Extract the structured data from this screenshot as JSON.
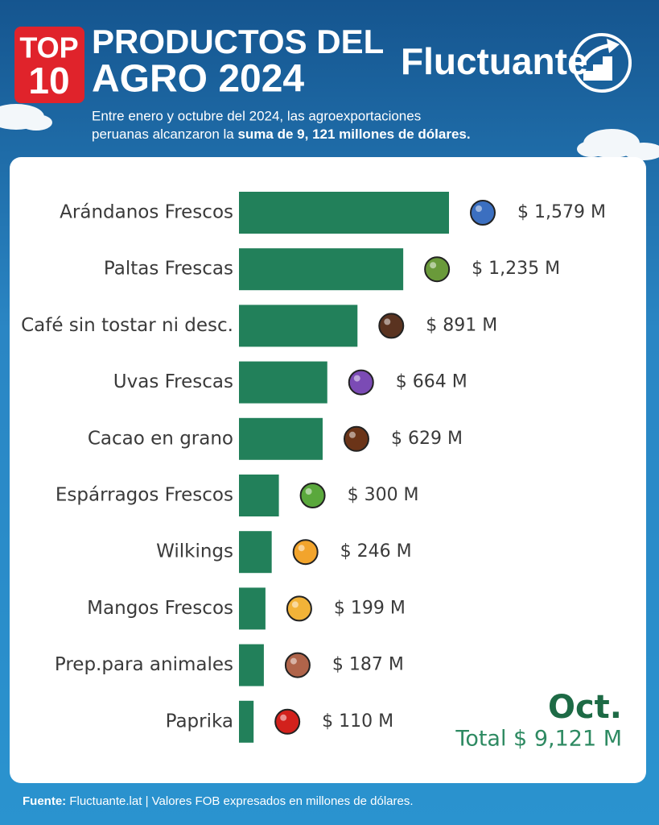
{
  "badge": {
    "top": "TOP",
    "number": "10"
  },
  "header": {
    "title_line1": "PRODUCTOS DEL",
    "title_line2": "AGRO 2024",
    "brand": "Fluctuante",
    "subtitle_line1": "Entre enero y octubre del 2024, las agroexportaciones",
    "subtitle_line2_plain": "peruanas alcanzaron la",
    "subtitle_line2_bold": "suma de 9, 121 millones de dólares."
  },
  "chart_data": {
    "type": "hbar",
    "color": "#22805a",
    "categories": [
      "Arándanos Frescos",
      "Paltas Frescas",
      "Café sin tostar ni desc.",
      "Uvas Frescas",
      "Cacao en grano",
      "Espárragos Frescos",
      "Wilkings",
      "Mangos Frescos",
      "Prep.para animales",
      "Paprika"
    ],
    "values": [
      1579,
      1235,
      891,
      664,
      629,
      300,
      246,
      199,
      187,
      110
    ],
    "value_labels": [
      "$ 1,579 M",
      "$ 1,235 M",
      "$ 891 M",
      "$ 664 M",
      "$ 629 M",
      "$ 300 M",
      "$ 246 M",
      "$ 199 M",
      "$ 187 M",
      "$ 110 M"
    ],
    "annotation_period": "Oct.",
    "annotation_total": "Total $ 9,121 M"
  },
  "footer": {
    "source_label": "Fuente:",
    "source_text": "Fluctuante.lat | Valores FOB expresados en millones de dólares."
  }
}
